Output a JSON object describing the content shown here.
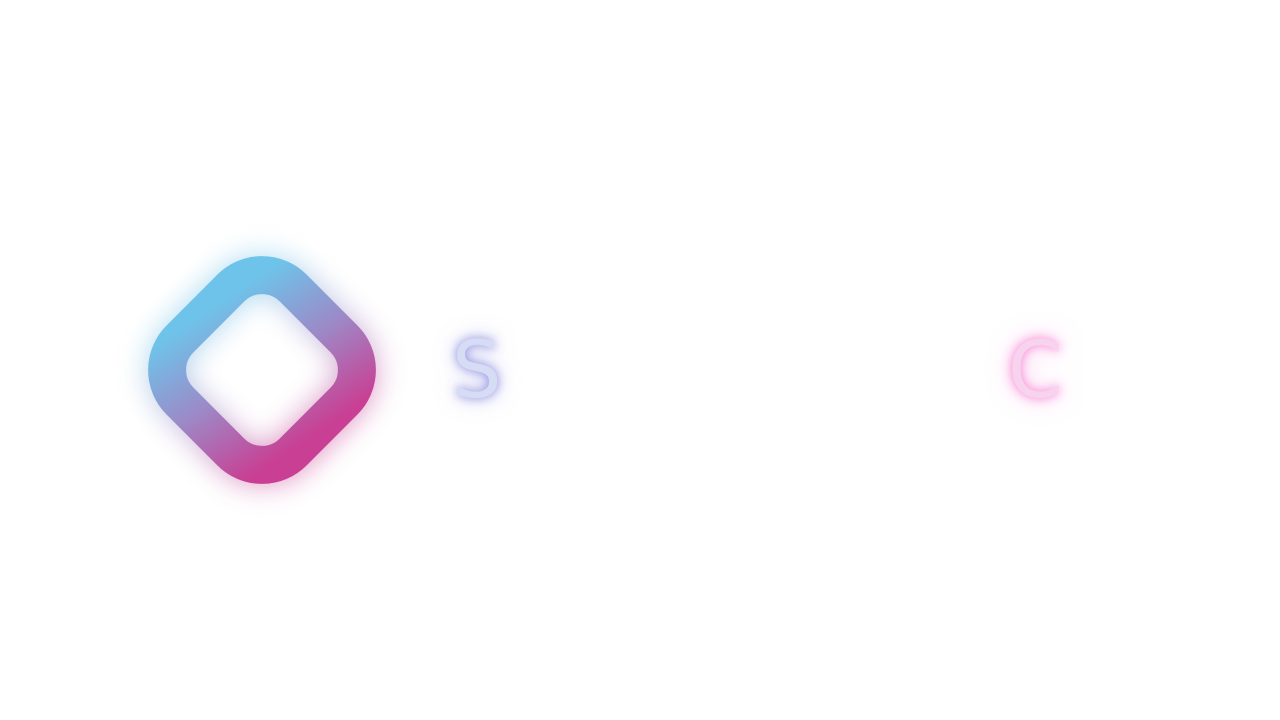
{
  "logo": {
    "icon": "rounded-diamond-ring-icon",
    "gradient_start": "#6ec3ea",
    "gradient_mid": "#9d88c6",
    "gradient_end": "#c93f93"
  },
  "letters": {
    "first": "S",
    "second": "C",
    "first_color": "#d7dcf5",
    "second_color": "#f8d3ee"
  },
  "background": "#ffffff"
}
